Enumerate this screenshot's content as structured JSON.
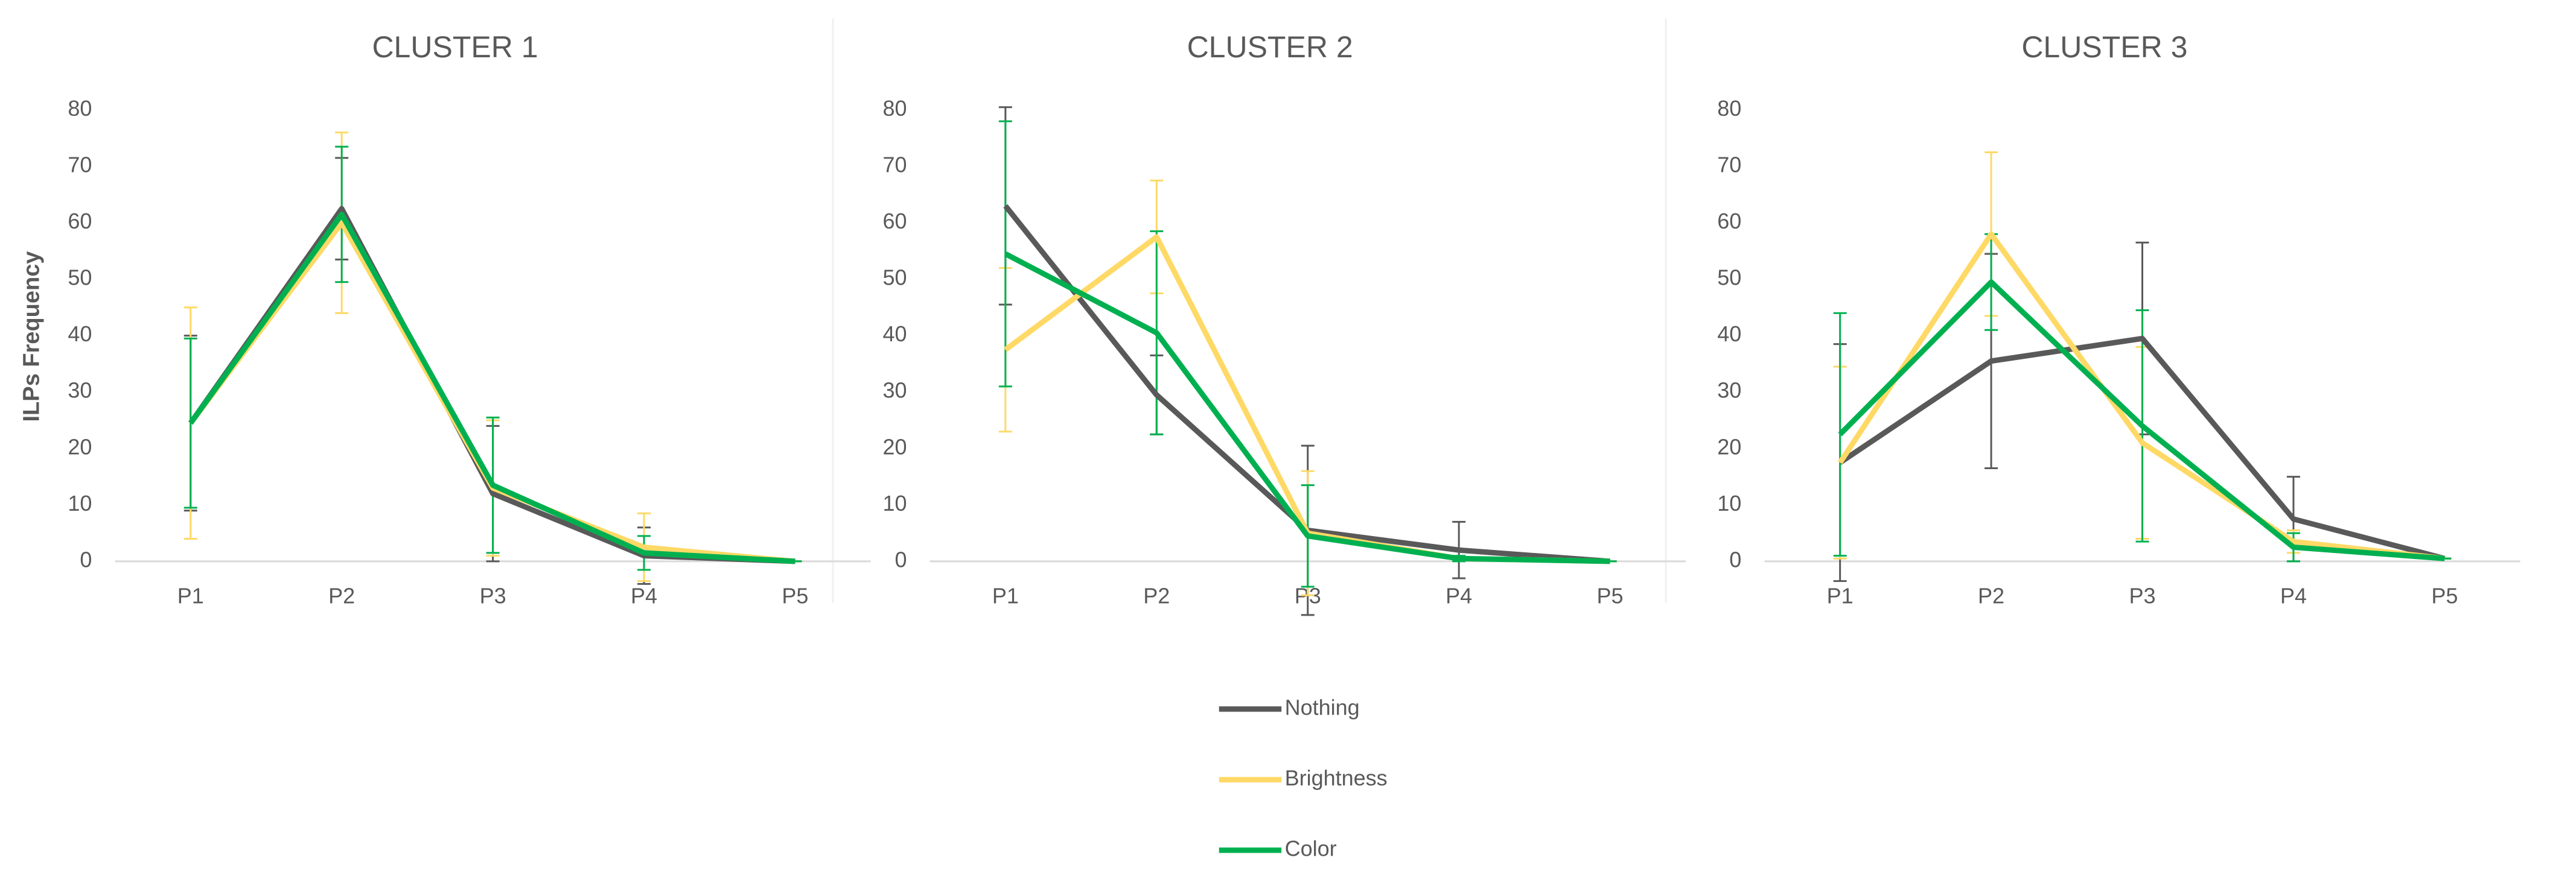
{
  "chart_data": [
    {
      "type": "line",
      "title": "CLUSTER 1",
      "y_label": "ILPs Frequency",
      "categories": [
        "P1",
        "P2",
        "P3",
        "P4",
        "P5"
      ],
      "ylim": [
        0,
        80
      ],
      "yticks": [
        0,
        10,
        20,
        30,
        40,
        50,
        60,
        70,
        80
      ],
      "grid": false,
      "series": [
        {
          "name": "Nothing",
          "color": "#595959",
          "values": [
            24.5,
            62.5,
            12,
            1,
            0
          ],
          "errors": [
            15.5,
            9,
            12,
            5,
            0
          ]
        },
        {
          "name": "Brightness",
          "color": "#ffd966",
          "values": [
            24.5,
            60,
            13,
            2.5,
            0
          ],
          "errors": [
            20.5,
            16,
            12,
            6,
            0
          ]
        },
        {
          "name": "Color",
          "color": "#00b050",
          "values": [
            24.5,
            61.5,
            13.5,
            1.5,
            0
          ],
          "errors": [
            15,
            12,
            12,
            3,
            0
          ]
        }
      ]
    },
    {
      "type": "line",
      "title": "CLUSTER 2",
      "categories": [
        "P1",
        "P2",
        "P3",
        "P4",
        "P5"
      ],
      "ylim": [
        0,
        80
      ],
      "yticks": [
        0,
        10,
        20,
        30,
        40,
        50,
        60,
        70,
        80
      ],
      "grid": false,
      "series": [
        {
          "name": "Nothing",
          "color": "#595959",
          "values": [
            63,
            29.5,
            5.5,
            2,
            0
          ],
          "errors": [
            17.5,
            7,
            15,
            5,
            0
          ]
        },
        {
          "name": "Brightness",
          "color": "#ffd966",
          "values": [
            37.5,
            57.5,
            5,
            0.5,
            0
          ],
          "errors": [
            14.5,
            10,
            11,
            0,
            0
          ]
        },
        {
          "name": "Color",
          "color": "#00b050",
          "values": [
            54.5,
            40.5,
            4.5,
            0.5,
            0
          ],
          "errors": [
            23.5,
            18,
            9,
            0.5,
            0
          ]
        }
      ]
    },
    {
      "type": "line",
      "title": "CLUSTER 3",
      "categories": [
        "P1",
        "P2",
        "P3",
        "P4",
        "P5"
      ],
      "ylim": [
        0,
        80
      ],
      "yticks": [
        0,
        10,
        20,
        30,
        40,
        50,
        60,
        70,
        80
      ],
      "grid": false,
      "series": [
        {
          "name": "Nothing",
          "color": "#595959",
          "values": [
            17.5,
            35.5,
            39.5,
            7.5,
            0.5
          ],
          "errors": [
            21,
            19,
            17,
            7.5,
            0
          ]
        },
        {
          "name": "Brightness",
          "color": "#ffd966",
          "values": [
            17.5,
            58,
            21,
            3.5,
            0.5
          ],
          "errors": [
            17,
            14.5,
            17,
            2,
            0
          ]
        },
        {
          "name": "Color",
          "color": "#00b050",
          "values": [
            22.5,
            49.5,
            24,
            2.5,
            0.5
          ],
          "errors": [
            21.5,
            8.5,
            20.5,
            2.5,
            0
          ]
        }
      ]
    }
  ]
}
